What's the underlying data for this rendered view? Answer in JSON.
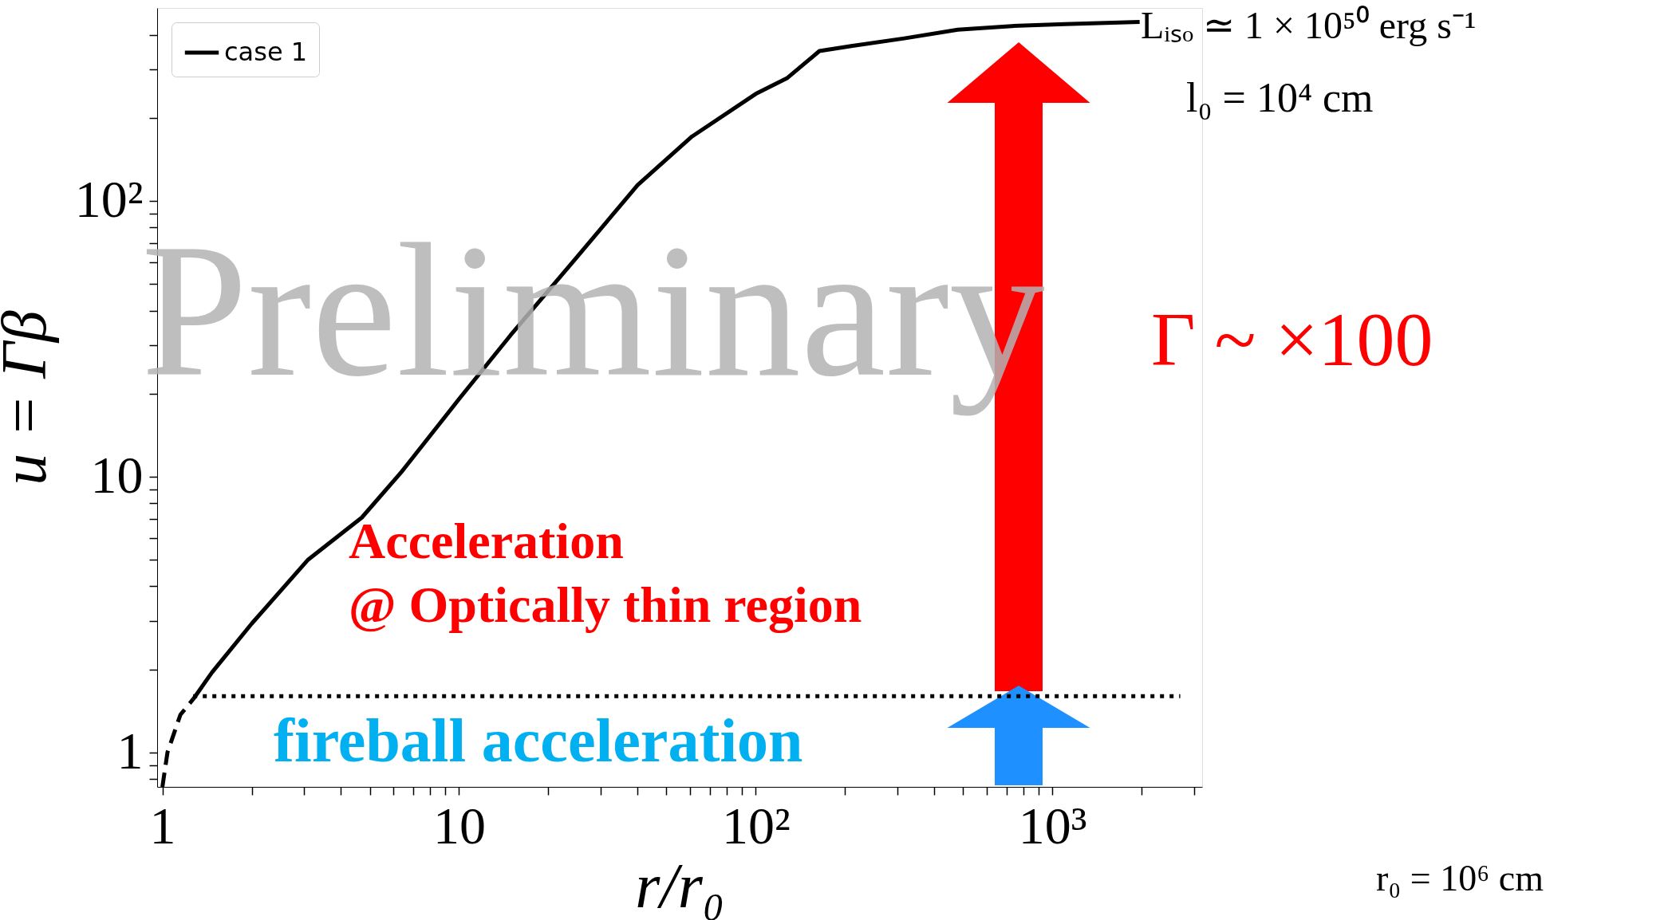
{
  "chart_data": {
    "type": "line",
    "xlabel": "r/r₀",
    "ylabel": "u = Γβ",
    "series": [
      {
        "name": "case 1",
        "color": "#000000",
        "line_style": "solid",
        "x": [
          1.27,
          1.47,
          2.0,
          3.1,
          4.7,
          6.4,
          10,
          14.9,
          24.5,
          40,
          61,
          100,
          128,
          164,
          210,
          317,
          480,
          730,
          1100,
          1970
        ],
        "values": [
          1.56,
          1.95,
          2.93,
          5.0,
          7.1,
          10.4,
          19.1,
          32.5,
          61,
          114,
          171,
          244,
          279,
          349,
          364,
          388,
          417,
          430,
          437,
          445
        ]
      },
      {
        "color": "#000000",
        "line_style": "dashed",
        "x": [
          1.0,
          1.04,
          1.15,
          1.27
        ],
        "values": [
          0.75,
          1.0,
          1.37,
          1.56
        ]
      },
      {
        "color": "#000000",
        "line_style": "dotted",
        "x": [
          1.27,
          2700
        ],
        "values": [
          1.6,
          1.6
        ]
      }
    ],
    "xlim": [
      0.96,
      3200
    ],
    "ylim": [
      0.75,
      500
    ],
    "log": "xy",
    "xticks": [
      1,
      {
        "value": 2,
        "label": null
      },
      {
        "value": 3,
        "label": null
      },
      {
        "value": 4,
        "label": null
      },
      {
        "value": 5,
        "label": null
      },
      {
        "value": 6,
        "label": null
      },
      {
        "value": 7,
        "label": null
      },
      {
        "value": 8,
        "label": null
      },
      {
        "value": 9,
        "label": null
      },
      10,
      {
        "value": 20,
        "label": null
      },
      {
        "value": 30,
        "label": null
      },
      {
        "value": 40,
        "label": null
      },
      {
        "value": 50,
        "label": null
      },
      {
        "value": 60,
        "label": null
      },
      {
        "value": 70,
        "label": null
      },
      {
        "value": 80,
        "label": null
      },
      {
        "value": 90,
        "label": null
      },
      {
        "value": 100,
        "label": "10²"
      },
      {
        "value": 200,
        "label": null
      },
      {
        "value": 300,
        "label": null
      },
      {
        "value": 400,
        "label": null
      },
      {
        "value": 500,
        "label": null
      },
      {
        "value": 600,
        "label": null
      },
      {
        "value": 700,
        "label": null
      },
      {
        "value": 800,
        "label": null
      },
      {
        "value": 900,
        "label": null
      },
      {
        "value": 1000,
        "label": "10³"
      },
      {
        "value": 2000,
        "label": null
      },
      {
        "value": 3000,
        "label": null
      }
    ],
    "yticks": [
      {
        "value": 0.8,
        "label": null
      },
      {
        "value": 0.9,
        "label": null
      },
      1,
      {
        "value": 2,
        "label": null
      },
      {
        "value": 3,
        "label": null
      },
      {
        "value": 4,
        "label": null
      },
      {
        "value": 5,
        "label": null
      },
      {
        "value": 6,
        "label": null
      },
      {
        "value": 7,
        "label": null
      },
      {
        "value": 8,
        "label": null
      },
      {
        "value": 9,
        "label": null
      },
      10,
      {
        "value": 20,
        "label": null
      },
      {
        "value": 30,
        "label": null
      },
      {
        "value": 40,
        "label": null
      },
      {
        "value": 50,
        "label": null
      },
      {
        "value": 60,
        "label": null
      },
      {
        "value": 70,
        "label": null
      },
      {
        "value": 80,
        "label": null
      },
      {
        "value": 90,
        "label": null
      },
      {
        "value": 100,
        "label": "10²"
      },
      {
        "value": 200,
        "label": null
      },
      {
        "value": 300,
        "label": null
      },
      {
        "value": 400,
        "label": null
      }
    ],
    "grid": false,
    "legend": "top left",
    "annotations": [
      "Preliminary",
      "Lᵢₛₒ ≃ 1 × 10⁵⁰ erg s⁻¹",
      "l₀ = 10⁴ cm",
      "Γ ~ ×100",
      "Acceleration\n@ Optically thin region",
      "fireball acceleration",
      "r₀ = 10⁶ cm"
    ]
  }
}
